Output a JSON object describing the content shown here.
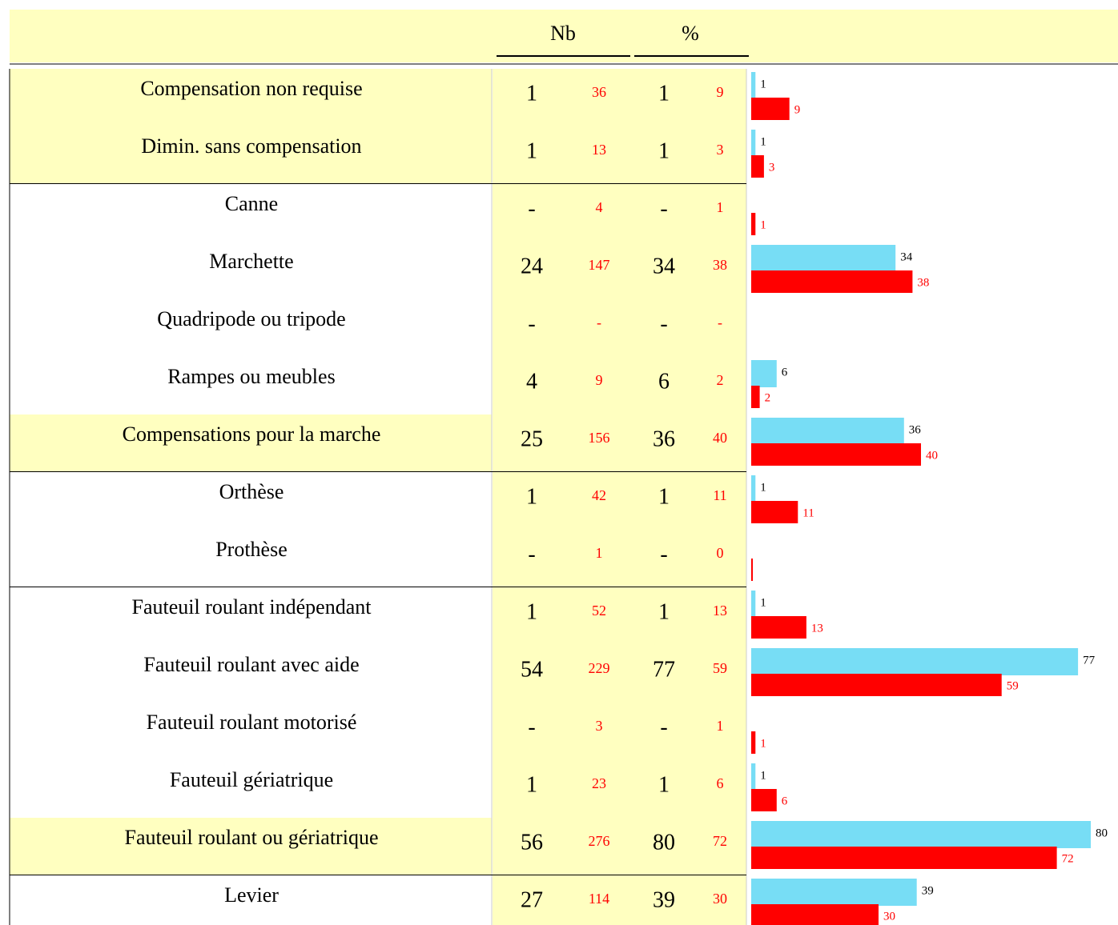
{
  "header": {
    "nb": "Nb",
    "pct": "%"
  },
  "rows": [
    {
      "label": "Compensation non requise",
      "nb": 1,
      "nb2": 36,
      "pct": 1,
      "pct2": 9
    },
    {
      "label": "Dimin. sans compensation",
      "nb": 1,
      "nb2": 13,
      "pct": 1,
      "pct2": 3
    },
    {
      "label": "Canne",
      "nb": "-",
      "nb2": 4,
      "pct": "-",
      "pct2": 1
    },
    {
      "label": "Marchette",
      "nb": 24,
      "nb2": 147,
      "pct": 34,
      "pct2": 38
    },
    {
      "label": "Quadripode ou tripode",
      "nb": "-",
      "nb2": "-",
      "pct": "-",
      "pct2": "-"
    },
    {
      "label": "Rampes ou meubles",
      "nb": 4,
      "nb2": 9,
      "pct": 6,
      "pct2": 2
    },
    {
      "label": "Compensations pour la marche",
      "nb": 25,
      "nb2": 156,
      "pct": 36,
      "pct2": 40
    },
    {
      "label": "Orthèse",
      "nb": 1,
      "nb2": 42,
      "pct": 1,
      "pct2": 11
    },
    {
      "label": "Prothèse",
      "nb": "-",
      "nb2": 1,
      "pct": "-",
      "pct2": 0
    },
    {
      "label": "Fauteuil roulant indépendant",
      "nb": 1,
      "nb2": 52,
      "pct": 1,
      "pct2": 13
    },
    {
      "label": "Fauteuil roulant avec aide",
      "nb": 54,
      "nb2": 229,
      "pct": 77,
      "pct2": 59
    },
    {
      "label": "Fauteuil roulant motorisé",
      "nb": "-",
      "nb2": 3,
      "pct": "-",
      "pct2": 1
    },
    {
      "label": "Fauteuil gériatrique",
      "nb": 1,
      "nb2": 23,
      "pct": 1,
      "pct2": 6
    },
    {
      "label": "Fauteuil roulant ou gériatrique",
      "nb": 56,
      "nb2": 276,
      "pct": 80,
      "pct2": 72
    },
    {
      "label": "Levier",
      "nb": 27,
      "nb2": 114,
      "pct": 39,
      "pct2": 30
    }
  ]
}
